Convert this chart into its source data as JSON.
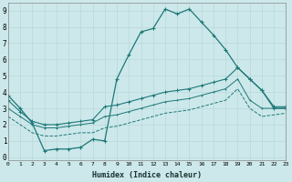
{
  "xlabel": "Humidex (Indice chaleur)",
  "xlim": [
    0,
    23
  ],
  "ylim": [
    -0.2,
    9.5
  ],
  "xticks": [
    0,
    1,
    2,
    3,
    4,
    5,
    6,
    7,
    8,
    9,
    10,
    11,
    12,
    13,
    14,
    15,
    16,
    17,
    18,
    19,
    20,
    21,
    22,
    23
  ],
  "yticks": [
    0,
    1,
    2,
    3,
    4,
    5,
    6,
    7,
    8,
    9
  ],
  "bg_color": "#cce8ea",
  "grid_color": "#b8d8da",
  "line_color": "#1e7878",
  "line1_x": [
    0,
    1,
    2,
    3,
    4,
    5,
    6,
    7,
    8,
    9,
    10,
    11,
    12,
    13,
    14,
    15,
    16,
    17,
    18,
    19,
    20,
    21,
    22,
    23
  ],
  "line1_y": [
    3.8,
    3.0,
    2.1,
    0.4,
    0.5,
    0.5,
    0.6,
    1.1,
    1.0,
    4.8,
    6.3,
    7.7,
    7.9,
    9.1,
    8.8,
    9.1,
    8.3,
    7.5,
    6.6,
    5.5,
    4.8,
    4.1,
    3.0,
    3.0
  ],
  "line2_x": [
    0,
    1,
    2,
    3,
    4,
    5,
    6,
    7,
    8,
    9,
    10,
    11,
    12,
    13,
    14,
    15,
    16,
    17,
    18,
    19,
    20,
    21,
    22,
    23
  ],
  "line2_y": [
    3.5,
    2.8,
    2.2,
    2.0,
    2.0,
    2.1,
    2.2,
    2.3,
    3.1,
    3.2,
    3.4,
    3.6,
    3.8,
    4.0,
    4.1,
    4.2,
    4.4,
    4.6,
    4.8,
    5.5,
    4.8,
    4.1,
    3.1,
    3.1
  ],
  "line3_x": [
    0,
    1,
    2,
    3,
    4,
    5,
    6,
    7,
    8,
    9,
    10,
    11,
    12,
    13,
    14,
    15,
    16,
    17,
    18,
    19,
    20,
    21,
    22,
    23
  ],
  "line3_y": [
    3.0,
    2.5,
    2.0,
    1.8,
    1.8,
    1.9,
    2.0,
    2.1,
    2.5,
    2.6,
    2.8,
    3.0,
    3.2,
    3.4,
    3.5,
    3.6,
    3.8,
    4.0,
    4.2,
    4.8,
    3.5,
    3.0,
    3.0,
    3.0
  ],
  "line4_x": [
    0,
    1,
    2,
    3,
    4,
    5,
    6,
    7,
    8,
    9,
    10,
    11,
    12,
    13,
    14,
    15,
    16,
    17,
    18,
    19,
    20,
    21,
    22,
    23
  ],
  "line4_y": [
    2.5,
    2.0,
    1.5,
    1.3,
    1.3,
    1.4,
    1.5,
    1.5,
    1.8,
    1.9,
    2.1,
    2.3,
    2.5,
    2.7,
    2.8,
    2.9,
    3.1,
    3.3,
    3.5,
    4.2,
    3.0,
    2.5,
    2.6,
    2.7
  ]
}
